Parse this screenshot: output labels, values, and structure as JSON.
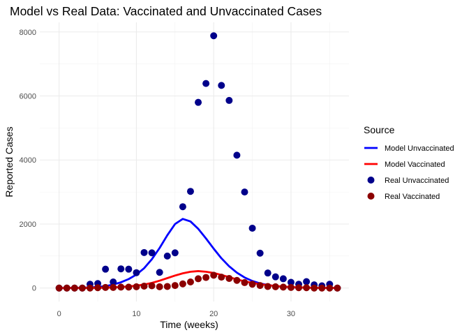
{
  "chart_data": {
    "type": "scatter",
    "title": "Model vs Real Data: Vaccinated and Unvaccinated Cases",
    "xlabel": "Time (weeks)",
    "ylabel": "Reported Cases",
    "xlim": [
      -2.5,
      37.5
    ],
    "ylim": [
      -420,
      8300
    ],
    "x_ticks": [
      0,
      10,
      20,
      30
    ],
    "y_ticks": [
      0,
      2000,
      4000,
      6000,
      8000
    ],
    "grid": true,
    "legend": {
      "title": "Source",
      "position": "right",
      "entries": [
        {
          "label": "Model Unvaccinated",
          "kind": "line",
          "color": "#0000ff"
        },
        {
          "label": "Model Vaccinated",
          "kind": "line",
          "color": "#ff0000"
        },
        {
          "label": "Real Unvaccinated",
          "kind": "point",
          "color": "#00008b"
        },
        {
          "label": "Real Vaccinated",
          "kind": "point",
          "color": "#8b0000"
        }
      ]
    },
    "series": [
      {
        "name": "Model Unvaccinated",
        "kind": "line",
        "color": "#0000ff",
        "x": [
          0,
          1,
          2,
          3,
          4,
          5,
          6,
          7,
          8,
          9,
          10,
          11,
          12,
          13,
          14,
          15,
          16,
          17,
          18,
          19,
          20,
          21,
          22,
          23,
          24,
          25,
          26,
          27,
          28,
          29,
          30,
          31,
          32,
          33,
          34,
          35,
          36
        ],
        "y": [
          0,
          2,
          5,
          10,
          20,
          35,
          60,
          110,
          180,
          280,
          420,
          620,
          900,
          1250,
          1650,
          2000,
          2160,
          2080,
          1850,
          1550,
          1230,
          930,
          680,
          480,
          330,
          220,
          145,
          95,
          60,
          40,
          25,
          16,
          10,
          6,
          4,
          2,
          1
        ]
      },
      {
        "name": "Model Vaccinated",
        "kind": "line",
        "color": "#ff0000",
        "x": [
          0,
          1,
          2,
          3,
          4,
          5,
          6,
          7,
          8,
          9,
          10,
          11,
          12,
          13,
          14,
          15,
          16,
          17,
          18,
          19,
          20,
          21,
          22,
          23,
          24,
          25,
          26,
          27,
          28,
          29,
          30,
          31,
          32,
          33,
          34,
          35,
          36
        ],
        "y": [
          0,
          0,
          1,
          2,
          4,
          7,
          12,
          20,
          32,
          50,
          75,
          110,
          160,
          230,
          310,
          390,
          460,
          510,
          530,
          510,
          470,
          410,
          340,
          270,
          210,
          160,
          120,
          90,
          65,
          45,
          30,
          20,
          13,
          8,
          5,
          3,
          2
        ]
      },
      {
        "name": "Real Unvaccinated",
        "kind": "point",
        "color": "#00008b",
        "x": [
          0,
          1,
          2,
          3,
          4,
          5,
          6,
          7,
          8,
          9,
          10,
          11,
          12,
          13,
          14,
          15,
          16,
          17,
          18,
          19,
          20,
          21,
          22,
          23,
          24,
          25,
          26,
          27,
          28,
          29,
          30,
          31,
          32,
          33,
          34,
          35,
          36
        ],
        "y": [
          0,
          0,
          0,
          0,
          120,
          140,
          590,
          190,
          600,
          590,
          480,
          1110,
          1100,
          490,
          1000,
          1100,
          2540,
          3020,
          5800,
          6390,
          7880,
          6330,
          5860,
          4150,
          3000,
          1870,
          1090,
          470,
          350,
          290,
          180,
          120,
          200,
          100,
          70,
          120,
          0
        ]
      },
      {
        "name": "Real Vaccinated",
        "kind": "point",
        "color": "#8b0000",
        "x": [
          0,
          1,
          2,
          3,
          4,
          5,
          6,
          7,
          8,
          9,
          10,
          11,
          12,
          13,
          14,
          15,
          16,
          17,
          18,
          19,
          20,
          21,
          22,
          23,
          24,
          25,
          26,
          27,
          28,
          29,
          30,
          31,
          32,
          33,
          34,
          35,
          36
        ],
        "y": [
          0,
          0,
          0,
          0,
          0,
          10,
          20,
          20,
          30,
          30,
          40,
          60,
          70,
          40,
          50,
          80,
          130,
          190,
          290,
          330,
          400,
          340,
          300,
          240,
          170,
          120,
          80,
          50,
          40,
          30,
          20,
          10,
          10,
          0,
          0,
          0,
          0
        ]
      }
    ]
  }
}
